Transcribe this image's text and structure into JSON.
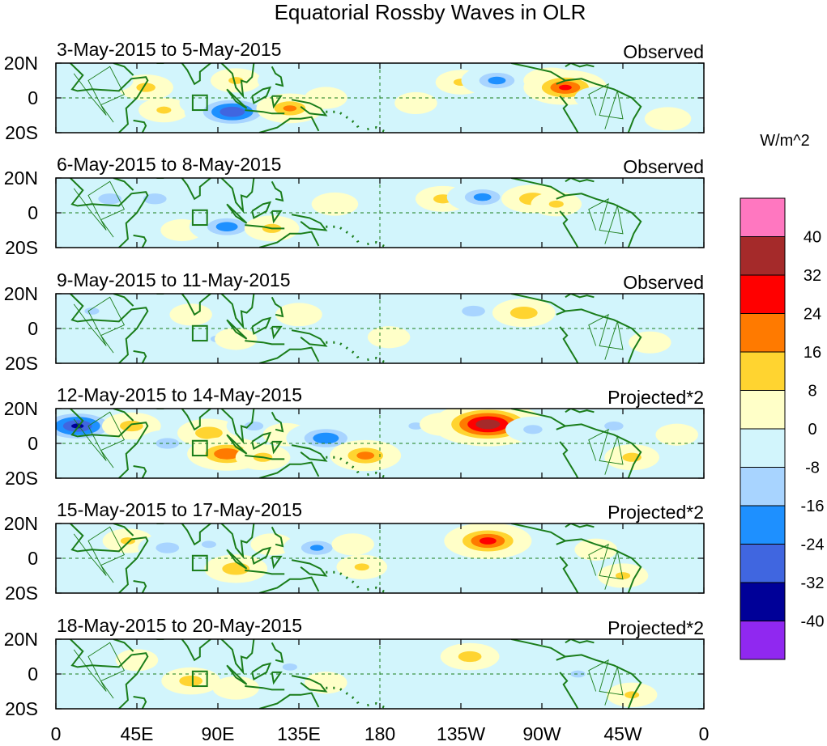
{
  "chart_data": {
    "type": "heatmap",
    "title": "Equatorial Rossby Waves in OLR",
    "units": "W/m^2",
    "x_tick_labels": [
      "0",
      "45E",
      "90E",
      "135E",
      "180",
      "135W",
      "90W",
      "45W",
      "0"
    ],
    "x_ticks_deg": [
      0,
      45,
      90,
      135,
      180,
      225,
      270,
      315,
      360
    ],
    "y_tick_labels": [
      "20N",
      "0",
      "20S"
    ],
    "y_ticks_lat": [
      20,
      0,
      -20
    ],
    "xlim": [
      0,
      360
    ],
    "ylim": [
      -20,
      20
    ],
    "colorbar": {
      "levels": [
        -40,
        -32,
        -24,
        -16,
        -8,
        0,
        8,
        16,
        24,
        32,
        40
      ],
      "level_labels": [
        "40",
        "32",
        "24",
        "16",
        "8",
        "0",
        "-8",
        "-16",
        "-24",
        "-32",
        "-40"
      ],
      "colors_high_to_low": [
        "#ff77c0",
        "#a52a2a",
        "#ff0000",
        "#ff7a00",
        "#ffd430",
        "#ffffc8",
        "#d2f5fc",
        "#a8d4ff",
        "#1e90ff",
        "#4066e0",
        "#000098",
        "#9028f0"
      ]
    },
    "panels": [
      {
        "date_range": "3-May-2015 to 5-May-2015",
        "label": "Observed",
        "anomalies": [
          {
            "lon": 50,
            "lat": 6,
            "v": 14
          },
          {
            "lon": 60,
            "lat": -7,
            "v": 12
          },
          {
            "lon": 30,
            "lat": 10,
            "v": -10
          },
          {
            "lon": 100,
            "lat": 10,
            "v": 12
          },
          {
            "lon": 85,
            "lat": -3,
            "v": -16
          },
          {
            "lon": 98,
            "lat": -8,
            "v": -34
          },
          {
            "lon": 130,
            "lat": -6,
            "v": 20
          },
          {
            "lon": 125,
            "lat": 10,
            "v": -10
          },
          {
            "lon": 150,
            "lat": 0,
            "v": 8
          },
          {
            "lon": 190,
            "lat": 8,
            "v": -10
          },
          {
            "lon": 200,
            "lat": -3,
            "v": 8
          },
          {
            "lon": 225,
            "lat": 9,
            "v": 12
          },
          {
            "lon": 245,
            "lat": 10,
            "v": -22
          },
          {
            "lon": 275,
            "lat": 10,
            "v": 14
          },
          {
            "lon": 283,
            "lat": 6,
            "v": 28
          },
          {
            "lon": 300,
            "lat": 0,
            "v": -8
          },
          {
            "lon": 340,
            "lat": -12,
            "v": 10
          }
        ]
      },
      {
        "date_range": "6-May-2015 to 8-May-2015",
        "label": "Observed",
        "anomalies": [
          {
            "lon": 30,
            "lat": 8,
            "v": -16
          },
          {
            "lon": 55,
            "lat": 8,
            "v": -16
          },
          {
            "lon": 70,
            "lat": -10,
            "v": 8
          },
          {
            "lon": 95,
            "lat": -8,
            "v": -24
          },
          {
            "lon": 120,
            "lat": -9,
            "v": 14
          },
          {
            "lon": 110,
            "lat": 10,
            "v": -8
          },
          {
            "lon": 155,
            "lat": 5,
            "v": 10
          },
          {
            "lon": 190,
            "lat": 8,
            "v": -10
          },
          {
            "lon": 215,
            "lat": 8,
            "v": 14
          },
          {
            "lon": 237,
            "lat": 9,
            "v": -22
          },
          {
            "lon": 265,
            "lat": 8,
            "v": 18
          },
          {
            "lon": 278,
            "lat": 5,
            "v": 12
          },
          {
            "lon": 300,
            "lat": -5,
            "v": -8
          },
          {
            "lon": 340,
            "lat": 8,
            "v": -8
          }
        ]
      },
      {
        "date_range": "9-May-2015 to 11-May-2015",
        "label": "Observed",
        "anomalies": [
          {
            "lon": 20,
            "lat": 10,
            "v": -12
          },
          {
            "lon": 55,
            "lat": 10,
            "v": -10
          },
          {
            "lon": 75,
            "lat": 8,
            "v": 8
          },
          {
            "lon": 90,
            "lat": -6,
            "v": -12
          },
          {
            "lon": 100,
            "lat": -6,
            "v": 8
          },
          {
            "lon": 135,
            "lat": 8,
            "v": 10
          },
          {
            "lon": 160,
            "lat": 0,
            "v": -8
          },
          {
            "lon": 185,
            "lat": -5,
            "v": 8
          },
          {
            "lon": 232,
            "lat": 10,
            "v": -16
          },
          {
            "lon": 260,
            "lat": 9,
            "v": 18
          },
          {
            "lon": 300,
            "lat": 0,
            "v": -8
          },
          {
            "lon": 330,
            "lat": -8,
            "v": 8
          }
        ]
      },
      {
        "date_range": "12-May-2015 to 14-May-2015",
        "label": "Projected*2",
        "anomalies": [
          {
            "lon": 12,
            "lat": 10,
            "v": -36
          },
          {
            "lon": 42,
            "lat": 10,
            "v": 16
          },
          {
            "lon": 62,
            "lat": 0,
            "v": -16
          },
          {
            "lon": 85,
            "lat": 6,
            "v": 18
          },
          {
            "lon": 95,
            "lat": -6,
            "v": 26
          },
          {
            "lon": 110,
            "lat": 10,
            "v": -14
          },
          {
            "lon": 115,
            "lat": -8,
            "v": 14
          },
          {
            "lon": 128,
            "lat": 5,
            "v": 10
          },
          {
            "lon": 150,
            "lat": 3,
            "v": -26
          },
          {
            "lon": 172,
            "lat": -7,
            "v": 22
          },
          {
            "lon": 200,
            "lat": 10,
            "v": -12
          },
          {
            "lon": 215,
            "lat": 11,
            "v": 10
          },
          {
            "lon": 240,
            "lat": 11,
            "v": 42
          },
          {
            "lon": 265,
            "lat": 8,
            "v": -14
          },
          {
            "lon": 310,
            "lat": 10,
            "v": -14
          },
          {
            "lon": 320,
            "lat": -8,
            "v": 14
          },
          {
            "lon": 345,
            "lat": 5,
            "v": 8
          }
        ]
      },
      {
        "date_range": "15-May-2015 to 17-May-2015",
        "label": "Projected*2",
        "anomalies": [
          {
            "lon": 40,
            "lat": 10,
            "v": 12
          },
          {
            "lon": 62,
            "lat": 6,
            "v": -16
          },
          {
            "lon": 85,
            "lat": 8,
            "v": -12
          },
          {
            "lon": 100,
            "lat": -6,
            "v": 18
          },
          {
            "lon": 120,
            "lat": 8,
            "v": 8
          },
          {
            "lon": 145,
            "lat": 6,
            "v": -20
          },
          {
            "lon": 165,
            "lat": 8,
            "v": 8
          },
          {
            "lon": 170,
            "lat": -5,
            "v": 12
          },
          {
            "lon": 210,
            "lat": 8,
            "v": -8
          },
          {
            "lon": 240,
            "lat": 10,
            "v": 30
          },
          {
            "lon": 285,
            "lat": 6,
            "v": -8
          },
          {
            "lon": 300,
            "lat": 5,
            "v": 8
          },
          {
            "lon": 315,
            "lat": -10,
            "v": 12
          },
          {
            "lon": 345,
            "lat": 10,
            "v": -10
          }
        ]
      },
      {
        "date_range": "18-May-2015 to 20-May-2015",
        "label": "Projected*2",
        "anomalies": [
          {
            "lon": 10,
            "lat": 5,
            "v": -8
          },
          {
            "lon": 45,
            "lat": 8,
            "v": 8
          },
          {
            "lon": 75,
            "lat": -4,
            "v": 16
          },
          {
            "lon": 100,
            "lat": -8,
            "v": 10
          },
          {
            "lon": 105,
            "lat": 8,
            "v": -8
          },
          {
            "lon": 130,
            "lat": 4,
            "v": -12
          },
          {
            "lon": 150,
            "lat": -5,
            "v": 8
          },
          {
            "lon": 230,
            "lat": 10,
            "v": 16
          },
          {
            "lon": 290,
            "lat": 0,
            "v": -12
          },
          {
            "lon": 320,
            "lat": -12,
            "v": 12
          },
          {
            "lon": 345,
            "lat": 5,
            "v": -8
          }
        ]
      }
    ]
  }
}
